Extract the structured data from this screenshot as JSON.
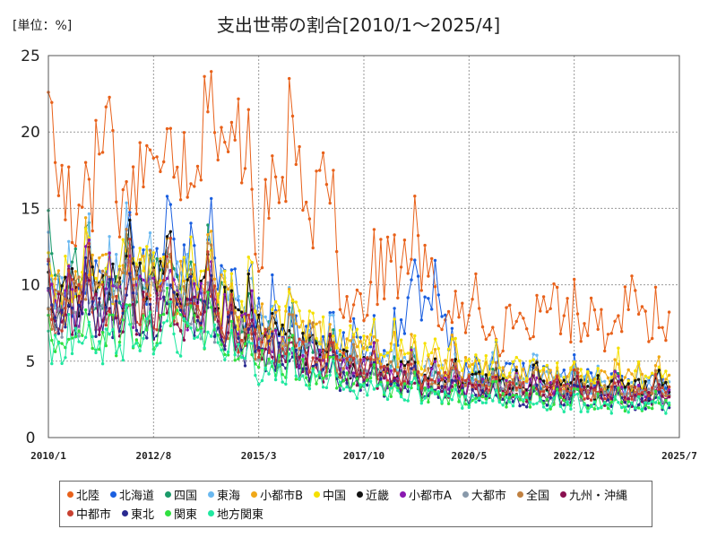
{
  "chart_data": {
    "type": "line",
    "title": "支出世帯の割合[2010/1～2025/4]",
    "unit_label": "[単位：%]",
    "xlabel": "",
    "ylabel": "",
    "x_range": [
      "2010/1",
      "2025/7"
    ],
    "x_ticks": [
      "2010/1",
      "2012/8",
      "2015/3",
      "2017/10",
      "2020/5",
      "2022/12",
      "2025/7"
    ],
    "ylim": [
      0,
      25
    ],
    "y_ticks": [
      0,
      5,
      10,
      15,
      20,
      25
    ],
    "grid": true,
    "legend_position": "bottom",
    "series": [
      {
        "name": "北陸",
        "color": "#e8611a",
        "start": 2010.0,
        "end": 2025.25,
        "points": [
          [
            2010.0,
            20.5
          ],
          [
            2010.5,
            14.5
          ],
          [
            2011.0,
            15.5
          ],
          [
            2011.4,
            21.5
          ],
          [
            2011.9,
            13.5
          ],
          [
            2012.3,
            19.0
          ],
          [
            2012.8,
            16.0
          ],
          [
            2013.1,
            20.5
          ],
          [
            2013.5,
            17.5
          ],
          [
            2013.9,
            21.5
          ],
          [
            2014.4,
            17.0
          ],
          [
            2014.8,
            21.0
          ],
          [
            2015.1,
            12.5
          ],
          [
            2015.6,
            16.0
          ],
          [
            2016.0,
            18.5
          ],
          [
            2016.4,
            12.5
          ],
          [
            2016.8,
            17.0
          ],
          [
            2017.2,
            9.5
          ],
          [
            2017.8,
            9.0
          ],
          [
            2018.3,
            11.5
          ],
          [
            2018.8,
            11.0
          ],
          [
            2019.2,
            11.5
          ],
          [
            2019.6,
            8.5
          ],
          [
            2020.0,
            7.0
          ],
          [
            2020.5,
            8.5
          ],
          [
            2021.0,
            6.5
          ],
          [
            2021.5,
            8.0
          ],
          [
            2022.0,
            6.5
          ],
          [
            2022.4,
            9.5
          ],
          [
            2022.9,
            7.0
          ],
          [
            2023.3,
            8.5
          ],
          [
            2023.8,
            6.5
          ],
          [
            2024.2,
            9.5
          ],
          [
            2024.6,
            7.5
          ],
          [
            2025.0,
            7.0
          ],
          [
            2025.25,
            7.5
          ]
        ]
      },
      {
        "name": "北海道",
        "color": "#1a5fe0",
        "start": 2010.0,
        "end": 2025.25,
        "points": [
          [
            2010.0,
            11.0
          ],
          [
            2011.0,
            9.5
          ],
          [
            2012.0,
            10.5
          ],
          [
            2013.0,
            11.0
          ],
          [
            2014.0,
            10.5
          ],
          [
            2015.0,
            8.5
          ],
          [
            2016.0,
            7.0
          ],
          [
            2017.0,
            6.0
          ],
          [
            2018.0,
            5.5
          ],
          [
            2019.0,
            8.5
          ],
          [
            2019.5,
            10.5
          ],
          [
            2020.0,
            4.0
          ],
          [
            2021.0,
            4.5
          ],
          [
            2022.0,
            4.0
          ],
          [
            2023.0,
            3.8
          ],
          [
            2024.0,
            3.5
          ],
          [
            2025.25,
            3.5
          ]
        ]
      },
      {
        "name": "四国",
        "color": "#1a9a6a",
        "start": 2010.0,
        "end": 2025.25,
        "points": [
          [
            2010.0,
            10.0
          ],
          [
            2011.0,
            10.5
          ],
          [
            2012.0,
            9.5
          ],
          [
            2013.0,
            10.0
          ],
          [
            2014.0,
            9.5
          ],
          [
            2015.0,
            7.0
          ],
          [
            2016.0,
            6.0
          ],
          [
            2017.0,
            5.0
          ],
          [
            2018.0,
            4.5
          ],
          [
            2019.0,
            4.0
          ],
          [
            2020.0,
            3.5
          ],
          [
            2021.0,
            3.5
          ],
          [
            2022.0,
            3.2
          ],
          [
            2023.0,
            3.2
          ],
          [
            2024.0,
            3.0
          ],
          [
            2025.25,
            3.0
          ]
        ]
      },
      {
        "name": "東海",
        "color": "#6ab8f0",
        "start": 2010.0,
        "end": 2025.25,
        "points": [
          [
            2010.0,
            9.5
          ],
          [
            2011.0,
            10.0
          ],
          [
            2012.0,
            10.5
          ],
          [
            2013.0,
            10.0
          ],
          [
            2014.0,
            10.0
          ],
          [
            2015.0,
            7.5
          ],
          [
            2016.0,
            6.5
          ],
          [
            2017.0,
            5.5
          ],
          [
            2018.0,
            5.0
          ],
          [
            2019.0,
            4.5
          ],
          [
            2020.0,
            4.0
          ],
          [
            2021.0,
            4.0
          ],
          [
            2022.0,
            3.8
          ],
          [
            2023.0,
            3.5
          ],
          [
            2024.0,
            3.5
          ],
          [
            2025.25,
            3.5
          ]
        ]
      },
      {
        "name": "小都市B",
        "color": "#f0a818",
        "start": 2010.0,
        "end": 2025.25,
        "points": [
          [
            2010.0,
            9.0
          ],
          [
            2011.0,
            10.0
          ],
          [
            2012.0,
            10.5
          ],
          [
            2013.0,
            10.0
          ],
          [
            2014.0,
            9.5
          ],
          [
            2015.0,
            7.5
          ],
          [
            2016.0,
            7.0
          ],
          [
            2017.0,
            6.0
          ],
          [
            2018.0,
            5.5
          ],
          [
            2019.0,
            5.0
          ],
          [
            2020.0,
            4.5
          ],
          [
            2021.0,
            4.0
          ],
          [
            2022.0,
            4.0
          ],
          [
            2023.0,
            3.8
          ],
          [
            2024.0,
            3.8
          ],
          [
            2025.25,
            3.5
          ]
        ]
      },
      {
        "name": "中国",
        "color": "#f5e000",
        "start": 2010.0,
        "end": 2025.25,
        "points": [
          [
            2010.0,
            9.5
          ],
          [
            2011.0,
            11.0
          ],
          [
            2012.0,
            11.0
          ],
          [
            2013.0,
            10.5
          ],
          [
            2014.0,
            10.0
          ],
          [
            2015.0,
            8.0
          ],
          [
            2016.0,
            7.5
          ],
          [
            2017.0,
            6.5
          ],
          [
            2018.0,
            6.0
          ],
          [
            2019.0,
            5.5
          ],
          [
            2020.0,
            4.8
          ],
          [
            2021.0,
            4.5
          ],
          [
            2022.0,
            4.2
          ],
          [
            2023.0,
            4.0
          ],
          [
            2024.0,
            4.0
          ],
          [
            2025.25,
            3.8
          ]
        ]
      },
      {
        "name": "近畿",
        "color": "#111111",
        "start": 2010.0,
        "end": 2025.25,
        "points": [
          [
            2010.0,
            9.0
          ],
          [
            2011.0,
            9.5
          ],
          [
            2012.0,
            10.0
          ],
          [
            2013.0,
            9.5
          ],
          [
            2014.0,
            9.0
          ],
          [
            2015.0,
            7.0
          ],
          [
            2016.0,
            6.0
          ],
          [
            2017.0,
            5.0
          ],
          [
            2018.0,
            4.5
          ],
          [
            2019.0,
            4.2
          ],
          [
            2020.0,
            3.8
          ],
          [
            2021.0,
            3.5
          ],
          [
            2022.0,
            3.5
          ],
          [
            2023.0,
            3.2
          ],
          [
            2024.0,
            3.2
          ],
          [
            2025.25,
            3.0
          ]
        ]
      },
      {
        "name": "小都市A",
        "color": "#8a18b0",
        "start": 2010.0,
        "end": 2025.25,
        "points": [
          [
            2010.0,
            8.5
          ],
          [
            2011.0,
            9.0
          ],
          [
            2012.0,
            9.0
          ],
          [
            2013.0,
            9.0
          ],
          [
            2014.0,
            8.5
          ],
          [
            2015.0,
            6.5
          ],
          [
            2016.0,
            5.5
          ],
          [
            2017.0,
            4.8
          ],
          [
            2018.0,
            4.2
          ],
          [
            2019.0,
            4.0
          ],
          [
            2020.0,
            3.5
          ],
          [
            2021.0,
            3.2
          ],
          [
            2022.0,
            3.2
          ],
          [
            2023.0,
            3.0
          ],
          [
            2024.0,
            3.0
          ],
          [
            2025.25,
            2.8
          ]
        ]
      },
      {
        "name": "大都市",
        "color": "#8899aa",
        "start": 2010.0,
        "end": 2025.25,
        "points": [
          [
            2010.0,
            8.0
          ],
          [
            2011.0,
            8.5
          ],
          [
            2012.0,
            8.5
          ],
          [
            2013.0,
            8.5
          ],
          [
            2014.0,
            8.0
          ],
          [
            2015.0,
            6.0
          ],
          [
            2016.0,
            5.5
          ],
          [
            2017.0,
            4.5
          ],
          [
            2018.0,
            4.0
          ],
          [
            2019.0,
            3.8
          ],
          [
            2020.0,
            3.2
          ],
          [
            2021.0,
            3.0
          ],
          [
            2022.0,
            3.0
          ],
          [
            2023.0,
            2.8
          ],
          [
            2024.0,
            2.8
          ],
          [
            2025.25,
            2.6
          ]
        ]
      },
      {
        "name": "全国",
        "color": "#c08040",
        "start": 2010.0,
        "end": 2025.25,
        "points": [
          [
            2010.0,
            8.5
          ],
          [
            2011.0,
            9.0
          ],
          [
            2012.0,
            9.5
          ],
          [
            2013.0,
            9.0
          ],
          [
            2014.0,
            8.5
          ],
          [
            2015.0,
            6.5
          ],
          [
            2016.0,
            6.0
          ],
          [
            2017.0,
            5.0
          ],
          [
            2018.0,
            4.5
          ],
          [
            2019.0,
            4.2
          ],
          [
            2020.0,
            3.6
          ],
          [
            2021.0,
            3.4
          ],
          [
            2022.0,
            3.3
          ],
          [
            2023.0,
            3.1
          ],
          [
            2024.0,
            3.0
          ],
          [
            2025.25,
            2.9
          ]
        ]
      },
      {
        "name": "九州・沖縄",
        "color": "#8a1050",
        "start": 2010.0,
        "end": 2025.25,
        "points": [
          [
            2010.0,
            8.0
          ],
          [
            2011.0,
            8.0
          ],
          [
            2012.0,
            8.5
          ],
          [
            2013.0,
            8.0
          ],
          [
            2014.0,
            8.0
          ],
          [
            2015.0,
            6.0
          ],
          [
            2016.0,
            5.0
          ],
          [
            2017.0,
            4.5
          ],
          [
            2018.0,
            4.0
          ],
          [
            2019.0,
            3.5
          ],
          [
            2020.0,
            3.0
          ],
          [
            2021.0,
            3.0
          ],
          [
            2022.0,
            2.8
          ],
          [
            2023.0,
            2.8
          ],
          [
            2024.0,
            2.6
          ],
          [
            2025.25,
            2.5
          ]
        ]
      },
      {
        "name": "中都市",
        "color": "#c84030",
        "start": 2010.0,
        "end": 2025.25,
        "points": [
          [
            2010.0,
            8.5
          ],
          [
            2011.0,
            9.0
          ],
          [
            2012.0,
            9.0
          ],
          [
            2013.0,
            9.0
          ],
          [
            2014.0,
            8.5
          ],
          [
            2015.0,
            6.5
          ],
          [
            2016.0,
            5.8
          ],
          [
            2017.0,
            4.8
          ],
          [
            2018.0,
            4.3
          ],
          [
            2019.0,
            4.0
          ],
          [
            2020.0,
            3.4
          ],
          [
            2021.0,
            3.2
          ],
          [
            2022.0,
            3.1
          ],
          [
            2023.0,
            3.0
          ],
          [
            2024.0,
            2.9
          ],
          [
            2025.25,
            2.8
          ]
        ]
      },
      {
        "name": "東北",
        "color": "#2a2a90",
        "start": 2010.0,
        "end": 2025.25,
        "points": [
          [
            2010.0,
            7.5
          ],
          [
            2011.0,
            8.0
          ],
          [
            2012.0,
            8.0
          ],
          [
            2013.0,
            8.0
          ],
          [
            2014.0,
            7.5
          ],
          [
            2015.0,
            5.5
          ],
          [
            2016.0,
            5.0
          ],
          [
            2017.0,
            4.0
          ],
          [
            2018.0,
            3.5
          ],
          [
            2019.0,
            3.2
          ],
          [
            2020.0,
            2.8
          ],
          [
            2021.0,
            2.6
          ],
          [
            2022.0,
            2.5
          ],
          [
            2023.0,
            2.4
          ],
          [
            2024.0,
            2.3
          ],
          [
            2025.25,
            2.2
          ]
        ]
      },
      {
        "name": "関東",
        "color": "#30e040",
        "start": 2010.0,
        "end": 2025.25,
        "points": [
          [
            2010.0,
            6.5
          ],
          [
            2011.0,
            6.5
          ],
          [
            2012.0,
            7.0
          ],
          [
            2013.0,
            7.0
          ],
          [
            2014.0,
            7.0
          ],
          [
            2015.0,
            5.0
          ],
          [
            2016.0,
            4.5
          ],
          [
            2017.0,
            3.8
          ],
          [
            2018.0,
            3.2
          ],
          [
            2019.0,
            3.0
          ],
          [
            2020.0,
            2.6
          ],
          [
            2021.0,
            2.5
          ],
          [
            2022.0,
            2.4
          ],
          [
            2023.0,
            2.3
          ],
          [
            2024.0,
            2.2
          ],
          [
            2025.25,
            2.1
          ]
        ]
      },
      {
        "name": "地方関東",
        "color": "#20e8a0",
        "start": 2010.0,
        "end": 2025.25,
        "points": [
          [
            2010.0,
            6.0
          ],
          [
            2011.0,
            6.0
          ],
          [
            2012.0,
            6.5
          ],
          [
            2013.0,
            6.5
          ],
          [
            2014.0,
            6.5
          ],
          [
            2015.0,
            4.5
          ],
          [
            2016.0,
            4.2
          ],
          [
            2017.0,
            3.5
          ],
          [
            2018.0,
            3.0
          ],
          [
            2019.0,
            2.8
          ],
          [
            2020.0,
            2.4
          ],
          [
            2021.0,
            2.3
          ],
          [
            2022.0,
            2.2
          ],
          [
            2023.0,
            2.1
          ],
          [
            2024.0,
            2.0
          ],
          [
            2025.25,
            2.0
          ]
        ]
      }
    ]
  }
}
